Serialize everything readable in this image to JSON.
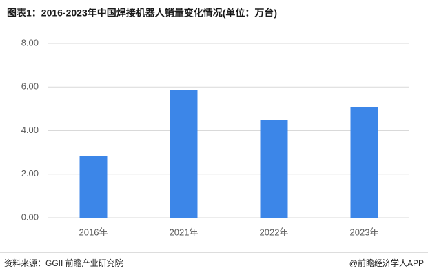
{
  "chart_data": {
    "type": "bar",
    "title": "图表1：2016-2023年中国焊接机器人销量变化情况(单位：万台)",
    "categories": [
      "2016年",
      "2021年",
      "2022年",
      "2023年"
    ],
    "values": [
      2.82,
      5.85,
      4.49,
      5.09
    ],
    "color": "#3c86e8",
    "ylim": [
      0,
      8
    ],
    "yticks": [
      {
        "value": 0,
        "label": "0.00"
      },
      {
        "value": 2,
        "label": "2.00"
      },
      {
        "value": 4,
        "label": "4.00"
      },
      {
        "value": 6,
        "label": "6.00"
      },
      {
        "value": 8,
        "label": "8.00"
      }
    ],
    "grid": true,
    "source": "资料来源：GGII 前瞻产业研究院",
    "credit": "@前瞻经济学人APP"
  }
}
